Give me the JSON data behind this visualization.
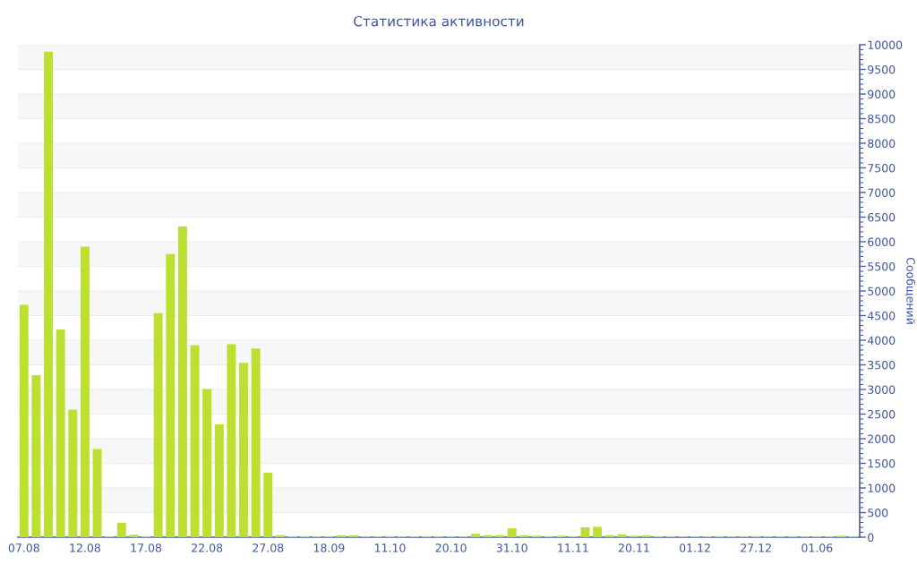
{
  "chart_data": {
    "type": "bar",
    "title": "Статистика активности",
    "ylabel": "Сообщений",
    "categories": [
      "07.08",
      null,
      null,
      null,
      null,
      "12.08",
      null,
      null,
      null,
      null,
      "17.08",
      null,
      null,
      null,
      null,
      "22.08",
      null,
      null,
      null,
      null,
      "27.08",
      null,
      null,
      null,
      null,
      "18.09",
      null,
      null,
      null,
      null,
      "11.10",
      null,
      null,
      null,
      null,
      "20.10",
      null,
      null,
      null,
      null,
      "31.10",
      null,
      null,
      null,
      null,
      "11.11",
      null,
      null,
      null,
      null,
      "20.11",
      null,
      null,
      null,
      null,
      "01.12",
      null,
      null,
      null,
      null,
      "27.12",
      null,
      null,
      null,
      null,
      "01.06",
      null,
      null,
      null
    ],
    "values": [
      4720,
      3290,
      9860,
      4220,
      2590,
      5900,
      1790,
      20,
      290,
      50,
      20,
      4550,
      5750,
      6310,
      3900,
      3010,
      2290,
      3920,
      3540,
      3830,
      1310,
      40,
      20,
      20,
      20,
      20,
      40,
      40,
      20,
      20,
      20,
      20,
      20,
      20,
      20,
      20,
      20,
      70,
      40,
      40,
      180,
      40,
      30,
      20,
      30,
      20,
      200,
      210,
      40,
      60,
      30,
      40,
      20,
      20,
      20,
      20,
      20,
      20,
      20,
      20,
      20,
      20,
      20,
      20,
      20,
      20,
      20,
      30,
      20
    ],
    "color": "#bce030",
    "ylim": [
      0,
      10000
    ],
    "yticks": [
      0,
      500,
      1000,
      1500,
      2000,
      2500,
      3000,
      3500,
      4000,
      4500,
      5000,
      5500,
      6000,
      6500,
      7000,
      7500,
      8000,
      8500,
      9000,
      9500,
      10000
    ],
    "grid": "y"
  }
}
